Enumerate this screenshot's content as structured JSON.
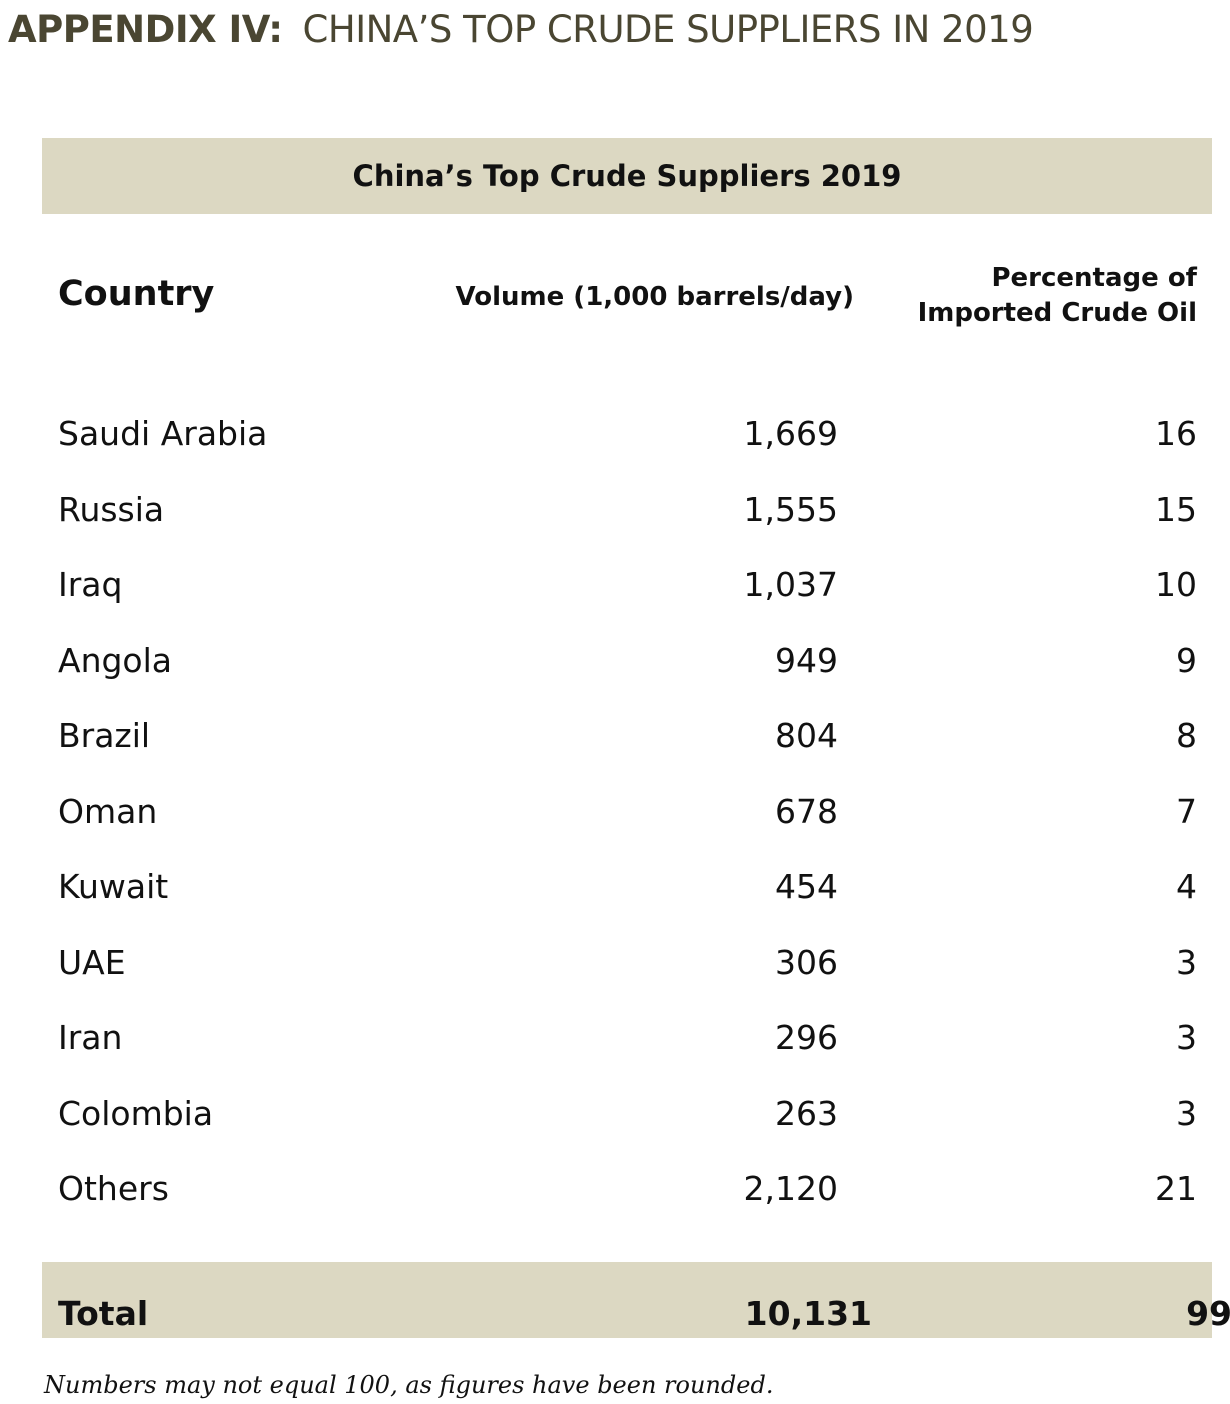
{
  "heading": {
    "lead": "APPENDIX IV:",
    "rest": "CHINA’S TOP CRUDE SUPPLIERS IN 2019"
  },
  "table": {
    "title": "China’s Top Crude Suppliers 2019",
    "headers": {
      "country": "Country",
      "volume": "Volume (1,000 barrels/day)",
      "percentage_line1": "Percentage of",
      "percentage_line2": "Imported Crude Oil"
    },
    "rows": [
      {
        "country": "Saudi Arabia",
        "volume": "1,669",
        "percentage": "16"
      },
      {
        "country": "Russia",
        "volume": "1,555",
        "percentage": "15"
      },
      {
        "country": "Iraq",
        "volume": "1,037",
        "percentage": "10"
      },
      {
        "country": "Angola",
        "volume": "949",
        "percentage": "9"
      },
      {
        "country": "Brazil",
        "volume": "804",
        "percentage": "8"
      },
      {
        "country": "Oman",
        "volume": "678",
        "percentage": "7"
      },
      {
        "country": "Kuwait",
        "volume": "454",
        "percentage": "4"
      },
      {
        "country": "UAE",
        "volume": "306",
        "percentage": "3"
      },
      {
        "country": "Iran",
        "volume": "296",
        "percentage": "3"
      },
      {
        "country": "Colombia",
        "volume": "263",
        "percentage": "3"
      },
      {
        "country": "Others",
        "volume": "2,120",
        "percentage": "21"
      }
    ],
    "total": {
      "label": "Total",
      "volume": "10,131",
      "percentage": "99"
    },
    "footnote": "Numbers may not equal 100, as figures have been rounded."
  },
  "colors": {
    "heading": "#4a4632",
    "band": "#dcd8c2",
    "text": "#111111"
  }
}
